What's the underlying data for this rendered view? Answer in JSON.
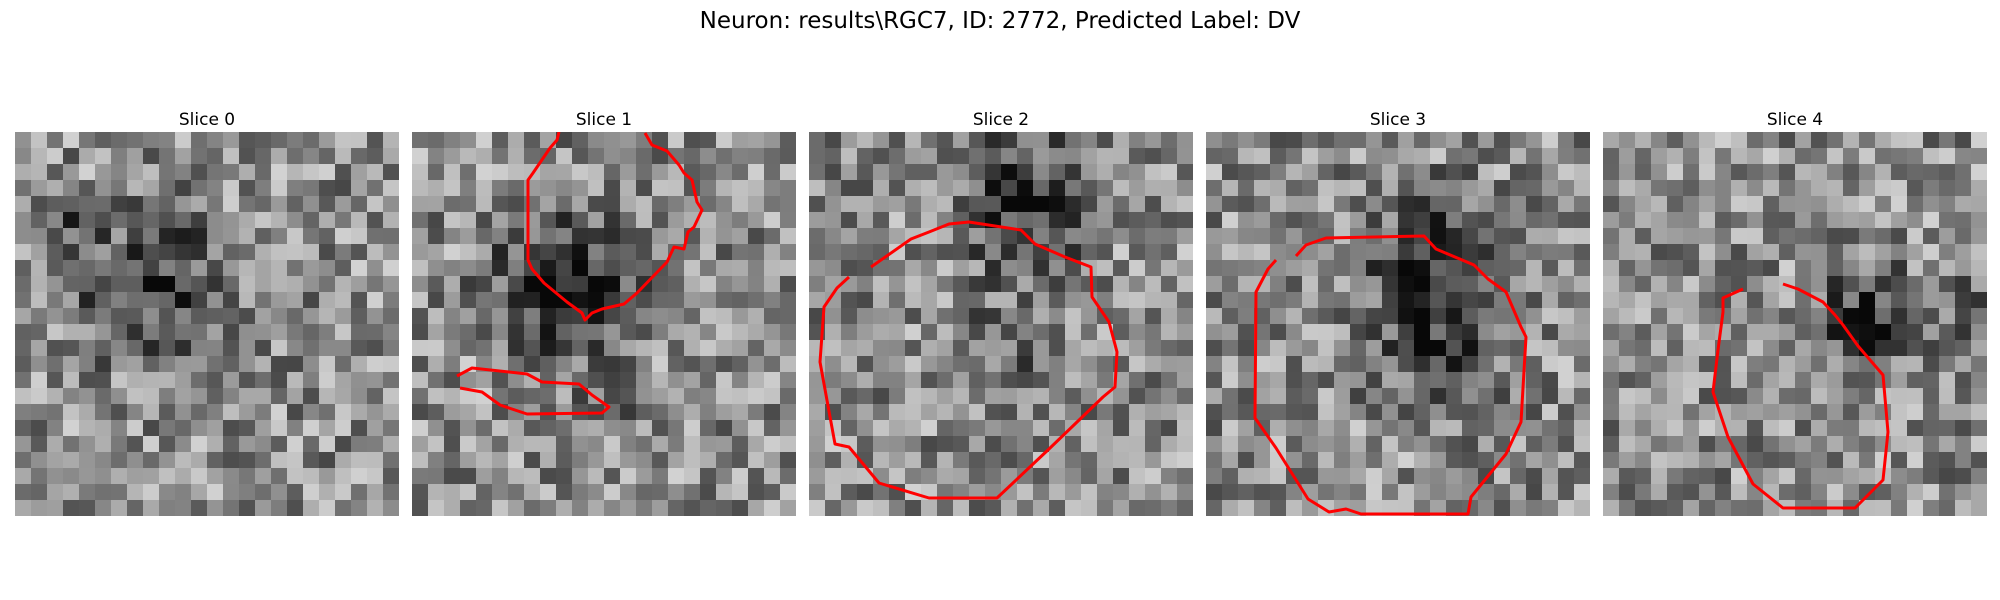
{
  "figure": {
    "title": "Neuron: results\\RGC7, ID: 2772, Predicted Label: DV"
  },
  "slices": [
    {
      "title": "Slice 0",
      "has_contour": false
    },
    {
      "title": "Slice 1",
      "has_contour": true
    },
    {
      "title": "Slice 2",
      "has_contour": true
    },
    {
      "title": "Slice 3",
      "has_contour": true
    },
    {
      "title": "Slice 4",
      "has_contour": true
    }
  ],
  "colors": {
    "contour": "#ff0000",
    "colormap": "gray"
  }
}
